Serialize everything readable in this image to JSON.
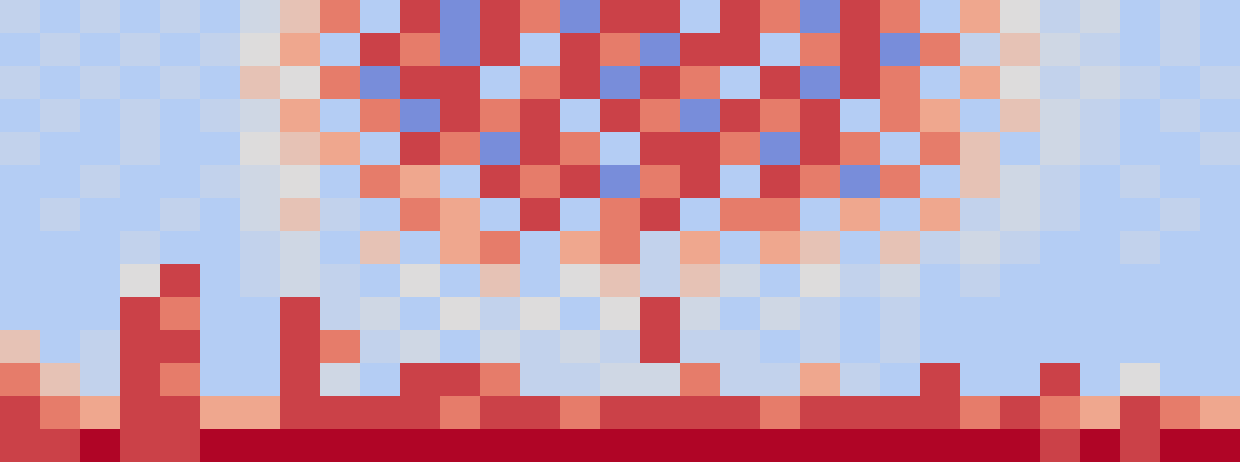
{
  "chart_data": {
    "type": "heatmap",
    "tick_labels": false,
    "color_range": [
      0,
      10
    ],
    "cells": [
      [
        3,
        2,
        3,
        2,
        3,
        2,
        4,
        6,
        8,
        2,
        9,
        1,
        9,
        8,
        1,
        9,
        9,
        2,
        9,
        8,
        1,
        9,
        8,
        2,
        7,
        5,
        3,
        4,
        2,
        3,
        2
      ],
      [
        2,
        3,
        2,
        3,
        2,
        3,
        5,
        7,
        2,
        9,
        8,
        1,
        9,
        2,
        9,
        8,
        1,
        9,
        9,
        2,
        8,
        9,
        1,
        8,
        3,
        6,
        4,
        3,
        2,
        3,
        2
      ],
      [
        3,
        2,
        3,
        2,
        3,
        2,
        6,
        5,
        8,
        1,
        9,
        9,
        2,
        8,
        9,
        1,
        9,
        8,
        2,
        9,
        1,
        9,
        8,
        2,
        7,
        5,
        3,
        4,
        3,
        2,
        3
      ],
      [
        2,
        3,
        2,
        3,
        2,
        3,
        4,
        7,
        2,
        8,
        1,
        9,
        8,
        9,
        2,
        9,
        8,
        1,
        9,
        8,
        9,
        2,
        8,
        7,
        2,
        6,
        4,
        3,
        2,
        3,
        2
      ],
      [
        3,
        2,
        2,
        3,
        2,
        2,
        5,
        6,
        7,
        2,
        9,
        8,
        1,
        9,
        8,
        2,
        9,
        9,
        8,
        1,
        9,
        8,
        2,
        8,
        6,
        2,
        4,
        3,
        2,
        2,
        3
      ],
      [
        2,
        2,
        3,
        2,
        2,
        3,
        4,
        5,
        2,
        8,
        7,
        2,
        9,
        8,
        9,
        1,
        8,
        9,
        2,
        9,
        8,
        1,
        8,
        2,
        6,
        4,
        3,
        2,
        3,
        2,
        2
      ],
      [
        2,
        3,
        2,
        2,
        3,
        2,
        4,
        6,
        3,
        2,
        8,
        7,
        2,
        9,
        2,
        8,
        9,
        2,
        8,
        8,
        2,
        7,
        2,
        7,
        3,
        4,
        3,
        2,
        2,
        3,
        2
      ],
      [
        2,
        2,
        2,
        3,
        2,
        2,
        3,
        4,
        2,
        6,
        2,
        7,
        8,
        2,
        7,
        8,
        3,
        7,
        2,
        7,
        6,
        2,
        6,
        3,
        4,
        3,
        2,
        2,
        3,
        2,
        2
      ],
      [
        2,
        2,
        2,
        5,
        9,
        2,
        3,
        4,
        3,
        2,
        5,
        2,
        6,
        2,
        5,
        6,
        3,
        6,
        4,
        2,
        5,
        3,
        4,
        2,
        3,
        2,
        2,
        2,
        2,
        2,
        2
      ],
      [
        2,
        2,
        2,
        9,
        8,
        2,
        2,
        9,
        3,
        4,
        2,
        5,
        3,
        5,
        2,
        5,
        9,
        4,
        2,
        4,
        3,
        2,
        3,
        2,
        2,
        2,
        2,
        2,
        2,
        2,
        2
      ],
      [
        6,
        2,
        3,
        9,
        9,
        2,
        2,
        9,
        8,
        3,
        4,
        2,
        4,
        3,
        4,
        3,
        9,
        3,
        3,
        2,
        3,
        2,
        3,
        2,
        2,
        2,
        2,
        2,
        2,
        2,
        2
      ],
      [
        8,
        6,
        3,
        9,
        8,
        2,
        2,
        9,
        4,
        2,
        9,
        9,
        8,
        3,
        3,
        4,
        4,
        8,
        3,
        3,
        7,
        3,
        2,
        9,
        2,
        2,
        9,
        2,
        5,
        2,
        2
      ],
      [
        9,
        8,
        7,
        9,
        9,
        7,
        7,
        9,
        9,
        9,
        9,
        8,
        9,
        9,
        8,
        9,
        9,
        9,
        9,
        8,
        9,
        9,
        9,
        9,
        8,
        9,
        8,
        7,
        9,
        8,
        7
      ],
      [
        9,
        9,
        10,
        9,
        9,
        10,
        10,
        10,
        10,
        10,
        10,
        10,
        10,
        10,
        10,
        10,
        10,
        10,
        10,
        10,
        10,
        10,
        10,
        10,
        10,
        10,
        9,
        10,
        9,
        10,
        10
      ]
    ]
  }
}
